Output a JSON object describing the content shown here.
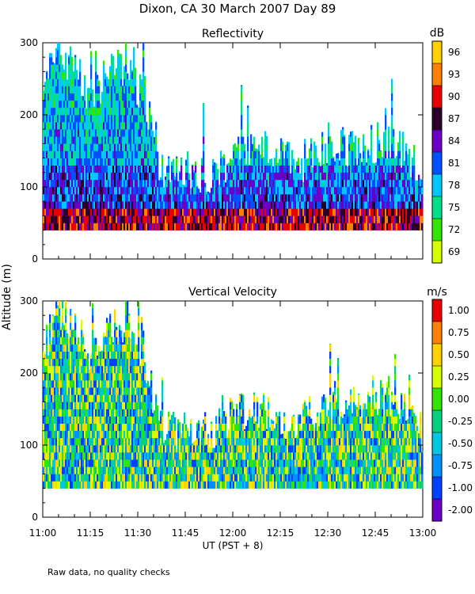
{
  "header": {
    "title": "Dixon, CA 30 March 2007  Day  89"
  },
  "y_axis_label": "Altitude  (m)",
  "footer": {
    "note": "Raw data, no quality checks"
  },
  "colors": {
    "scale": [
      "#d7ff00",
      "#32e600",
      "#00e08c",
      "#00c8ff",
      "#0050ff",
      "#6a00c8",
      "#2a0028",
      "#e60000",
      "#ff8000",
      "#ffd200"
    ],
    "reflectivity_bins": [
      "#d7ff00",
      "#32e600",
      "#00e08c",
      "#00c8ff",
      "#0050ff",
      "#6a00c8",
      "#2a0028",
      "#e60000",
      "#ff8000",
      "#ffd200"
    ],
    "velocity_bins": [
      "#2a0028",
      "#6a00c8",
      "#0040ff",
      "#0090ff",
      "#00c8e0",
      "#00d080",
      "#32e600",
      "#d7ff00",
      "#ffd200",
      "#ff8000",
      "#e60000"
    ]
  },
  "chart_data": [
    {
      "type": "heatmap",
      "title": "Reflectivity",
      "xlabel": "UT  (PST + 8)",
      "ylabel": "Altitude  (m)",
      "x_ticks": [
        "11:00",
        "11:15",
        "11:30",
        "11:45",
        "12:00",
        "12:15",
        "12:30",
        "12:45",
        "13:00"
      ],
      "x_range_minutes": [
        0,
        120
      ],
      "y_ticks": [
        "0",
        "100",
        "200",
        "300"
      ],
      "ylim": [
        0,
        300
      ],
      "colorbar": {
        "unit": "dB",
        "labels": [
          "69",
          "72",
          "75",
          "78",
          "81",
          "84",
          "87",
          "90",
          "93",
          "96"
        ],
        "range": [
          67.5,
          97.5
        ]
      },
      "data_bottom_m": 40,
      "echo_top_profile_m": [
        {
          "t": 0,
          "top": 220
        },
        {
          "t": 5,
          "top": 300
        },
        {
          "t": 10,
          "top": 260
        },
        {
          "t": 15,
          "top": 230
        },
        {
          "t": 25,
          "top": 270
        },
        {
          "t": 32,
          "top": 230
        },
        {
          "t": 36,
          "top": 140
        },
        {
          "t": 40,
          "top": 120
        },
        {
          "t": 52,
          "top": 120
        },
        {
          "t": 60,
          "top": 140
        },
        {
          "t": 70,
          "top": 150
        },
        {
          "t": 80,
          "top": 130
        },
        {
          "t": 90,
          "top": 160
        },
        {
          "t": 100,
          "top": 150
        },
        {
          "t": 110,
          "top": 170
        },
        {
          "t": 120,
          "top": 120
        }
      ]
    },
    {
      "type": "heatmap",
      "title": "Vertical Velocity",
      "xlabel": "UT  (PST + 8)",
      "ylabel": "Altitude  (m)",
      "x_ticks": [
        "11:00",
        "11:15",
        "11:30",
        "11:45",
        "12:00",
        "12:15",
        "12:30",
        "12:45",
        "13:00"
      ],
      "x_range_minutes": [
        0,
        120
      ],
      "y_ticks": [
        "0",
        "100",
        "200",
        "300"
      ],
      "ylim": [
        0,
        300
      ],
      "colorbar": {
        "unit": "m/s",
        "labels": [
          "1.00",
          "0.75",
          "0.50",
          "0.25",
          "0.00",
          "-0.25",
          "-0.50",
          "-0.75",
          "-1.00",
          "-2.00"
        ]
      },
      "data_bottom_m": 40,
      "echo_top_profile_m": [
        {
          "t": 0,
          "top": 220
        },
        {
          "t": 5,
          "top": 300
        },
        {
          "t": 10,
          "top": 260
        },
        {
          "t": 15,
          "top": 230
        },
        {
          "t": 25,
          "top": 270
        },
        {
          "t": 32,
          "top": 230
        },
        {
          "t": 36,
          "top": 140
        },
        {
          "t": 40,
          "top": 120
        },
        {
          "t": 52,
          "top": 120
        },
        {
          "t": 60,
          "top": 140
        },
        {
          "t": 70,
          "top": 150
        },
        {
          "t": 80,
          "top": 130
        },
        {
          "t": 90,
          "top": 160
        },
        {
          "t": 100,
          "top": 150
        },
        {
          "t": 110,
          "top": 170
        },
        {
          "t": 120,
          "top": 120
        }
      ]
    }
  ]
}
